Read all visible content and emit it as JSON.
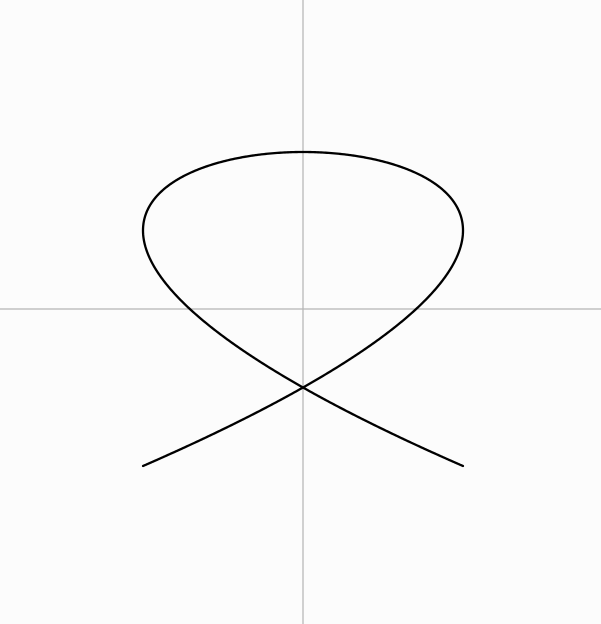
{
  "chart_data": {
    "type": "line",
    "title": "",
    "xlabel": "",
    "ylabel": "",
    "grid": false,
    "legend": "none",
    "xlim": [
      -1.25,
      1.25
    ],
    "ylim": [
      -1.25,
      1.25
    ],
    "axes": {
      "show_x_axis": true,
      "show_y_axis": true,
      "axis_color": "#b4b4b4"
    },
    "series": [
      {
        "x_equation": "sin(3t)",
        "y_equation": "cos(2t)",
        "x_range": [
          -1,
          1
        ],
        "y_range": [
          -1,
          1
        ],
        "color": "#000000"
      }
    ]
  }
}
